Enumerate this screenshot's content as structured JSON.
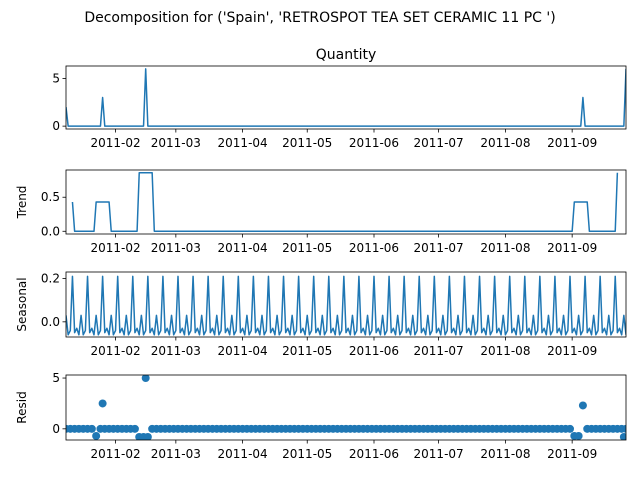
{
  "suptitle": "Decomposition for ('Spain', 'RETROSPOT TEA SET CERAMIC 11 PC ')",
  "chart_data": [
    {
      "type": "line",
      "title": "Quantity",
      "ylabel": "",
      "ylim": [
        -0.3,
        6.3
      ],
      "yticks": [
        0,
        5
      ],
      "ytick_labels": [
        "0",
        "5"
      ],
      "xlim": [
        "2011-01-09",
        "2011-09-26"
      ],
      "xticks": [
        "2011-02-01",
        "2011-03-01",
        "2011-04-01",
        "2011-05-01",
        "2011-06-01",
        "2011-07-01",
        "2011-08-01",
        "2011-09-01"
      ],
      "xtick_labels": [
        "2011-02",
        "2011-03",
        "2011-04",
        "2011-05",
        "2011-06",
        "2011-07",
        "2011-08",
        "2011-09"
      ],
      "points": [
        [
          "2011-01-09",
          2
        ],
        [
          "2011-01-10",
          0
        ],
        [
          "2011-01-25",
          0
        ],
        [
          "2011-01-26",
          3
        ],
        [
          "2011-01-27",
          0
        ],
        [
          "2011-02-14",
          0
        ],
        [
          "2011-02-15",
          6
        ],
        [
          "2011-02-16",
          0
        ],
        [
          "2011-09-05",
          0
        ],
        [
          "2011-09-06",
          3
        ],
        [
          "2011-09-07",
          0
        ],
        [
          "2011-09-25",
          0
        ],
        [
          "2011-09-26",
          6
        ]
      ]
    },
    {
      "type": "line",
      "title": "",
      "ylabel": "Trend",
      "ylim": [
        -0.04,
        0.9
      ],
      "yticks": [
        0,
        0.5
      ],
      "ytick_labels": [
        "0.0",
        "0.5"
      ],
      "xlim": [
        "2011-01-09",
        "2011-09-26"
      ],
      "xticks": [
        "2011-02-01",
        "2011-03-01",
        "2011-04-01",
        "2011-05-01",
        "2011-06-01",
        "2011-07-01",
        "2011-08-01",
        "2011-09-01"
      ],
      "xtick_labels": [
        "2011-02",
        "2011-03",
        "2011-04",
        "2011-05",
        "2011-06",
        "2011-07",
        "2011-08",
        "2011-09"
      ],
      "points": [
        [
          "2011-01-12",
          0.43
        ],
        [
          "2011-01-13",
          0
        ],
        [
          "2011-01-22",
          0
        ],
        [
          "2011-01-23",
          0.43
        ],
        [
          "2011-01-29",
          0.43
        ],
        [
          "2011-01-30",
          0
        ],
        [
          "2011-02-11",
          0
        ],
        [
          "2011-02-12",
          0.86
        ],
        [
          "2011-02-18",
          0.86
        ],
        [
          "2011-02-19",
          0
        ],
        [
          "2011-09-01",
          0
        ],
        [
          "2011-09-02",
          0.43
        ],
        [
          "2011-09-08",
          0.43
        ],
        [
          "2011-09-09",
          0
        ],
        [
          "2011-09-21",
          0
        ],
        [
          "2011-09-22",
          0.86
        ]
      ]
    },
    {
      "type": "line",
      "title": "",
      "ylabel": "Seasonal",
      "ylim": [
        -0.07,
        0.23
      ],
      "yticks": [
        0,
        0.2
      ],
      "ytick_labels": [
        "0.0",
        "0.2"
      ],
      "xlim": [
        "2011-01-09",
        "2011-09-26"
      ],
      "xticks": [
        "2011-02-01",
        "2011-03-01",
        "2011-04-01",
        "2011-05-01",
        "2011-06-01",
        "2011-07-01",
        "2011-08-01",
        "2011-09-01"
      ],
      "xtick_labels": [
        "2011-02",
        "2011-03",
        "2011-04",
        "2011-05",
        "2011-06",
        "2011-07",
        "2011-08",
        "2011-09"
      ],
      "period_start": "2011-01-09",
      "period_values": [
        0.03,
        -0.06,
        -0.04,
        0.21,
        -0.05,
        -0.03,
        -0.06
      ]
    },
    {
      "type": "scatter",
      "title": "",
      "ylabel": "Resid",
      "ylim": [
        -1.1,
        5.3
      ],
      "yticks": [
        0,
        5
      ],
      "ytick_labels": [
        "0",
        "5"
      ],
      "xlim": [
        "2011-01-09",
        "2011-09-26"
      ],
      "xticks": [
        "2011-02-01",
        "2011-03-01",
        "2011-04-01",
        "2011-05-01",
        "2011-06-01",
        "2011-07-01",
        "2011-08-01",
        "2011-09-01"
      ],
      "xtick_labels": [
        "2011-02",
        "2011-03",
        "2011-04",
        "2011-05",
        "2011-06",
        "2011-07",
        "2011-08",
        "2011-09"
      ],
      "outliers": [
        [
          "2011-01-26",
          2.5
        ],
        [
          "2011-02-15",
          5.0
        ],
        [
          "2011-09-06",
          2.3
        ],
        [
          "2011-01-23",
          -0.7
        ],
        [
          "2011-02-12",
          -0.8
        ],
        [
          "2011-02-14",
          -0.8
        ],
        [
          "2011-02-16",
          -0.8
        ],
        [
          "2011-09-02",
          -0.7
        ],
        [
          "2011-09-04",
          -0.7
        ],
        [
          "2011-09-25",
          -0.8
        ]
      ]
    }
  ]
}
